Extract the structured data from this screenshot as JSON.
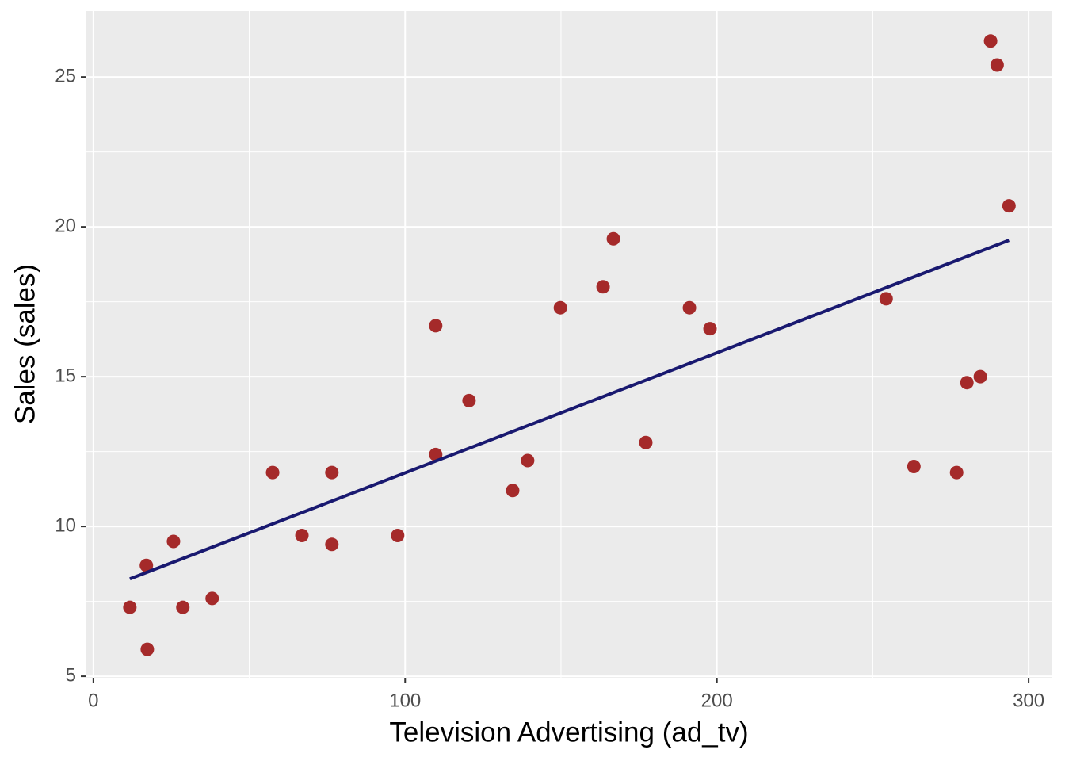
{
  "chart_data": {
    "type": "scatter",
    "xlabel": "Television Advertising (ad_tv)",
    "ylabel": "Sales (sales)",
    "series": [
      {
        "color": "#A52A2A",
        "x": [
          11.7,
          17.0,
          17.3,
          25.7,
          28.7,
          38.1,
          57.5,
          66.9,
          76.5,
          76.5,
          97.6,
          109.8,
          109.8,
          120.5,
          134.5,
          139.3,
          149.8,
          163.5,
          166.8,
          177.2,
          191.2,
          197.8,
          254.3,
          263.2,
          276.9,
          280.2,
          284.5,
          287.8,
          289.9,
          293.7
        ],
        "values": [
          7.3,
          8.7,
          5.9,
          9.5,
          7.3,
          7.6,
          11.8,
          9.7,
          11.8,
          9.4,
          9.7,
          16.7,
          12.4,
          14.2,
          11.2,
          12.2,
          17.3,
          18.0,
          19.6,
          12.8,
          17.3,
          16.6,
          17.6,
          12.0,
          11.8,
          14.8,
          15.0,
          26.2,
          25.4,
          20.7
        ]
      }
    ],
    "trend_line": {
      "color": "#191970",
      "x": [
        11.7,
        293.7
      ],
      "values": [
        8.25,
        19.55
      ]
    },
    "xlim": [
      -2.5,
      307.6
    ],
    "ylim": [
      4.95,
      27.2
    ],
    "xticks": [
      0,
      100,
      200,
      300
    ],
    "yticks": [
      5,
      10,
      15,
      20,
      25
    ],
    "xminor": [
      50,
      150,
      250
    ],
    "yminor": [
      7.5,
      12.5,
      17.5,
      22.5
    ],
    "grid": true,
    "panel_color": "#EBEBEB"
  }
}
